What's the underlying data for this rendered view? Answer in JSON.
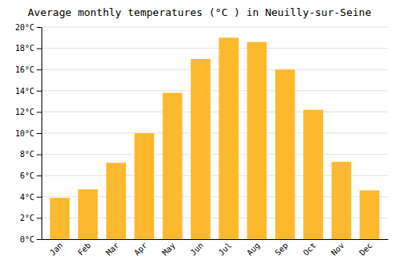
{
  "chart_data": {
    "type": "bar",
    "title": "Average monthly temperatures (°C ) in Neuilly-sur-Seine",
    "categories": [
      "Jan",
      "Feb",
      "Mar",
      "Apr",
      "May",
      "Jun",
      "Jul",
      "Aug",
      "Sep",
      "Oct",
      "Nov",
      "Dec"
    ],
    "values": [
      3.9,
      4.7,
      7.2,
      10.0,
      13.8,
      17.0,
      19.0,
      18.6,
      16.0,
      12.2,
      7.3,
      4.6
    ],
    "color": "#FDB92E",
    "ylim": [
      0,
      20
    ],
    "yticks": [
      {
        "value": 0,
        "label": "0°C"
      },
      {
        "value": 2,
        "label": "2°C"
      },
      {
        "value": 4,
        "label": "4°C"
      },
      {
        "value": 6,
        "label": "6°C"
      },
      {
        "value": 8,
        "label": "8°C"
      },
      {
        "value": 10,
        "label": "10°C"
      },
      {
        "value": 12,
        "label": "12°C"
      },
      {
        "value": 14,
        "label": "14°C"
      },
      {
        "value": 16,
        "label": "16°C"
      },
      {
        "value": 18,
        "label": "18°C"
      },
      {
        "value": 20,
        "label": "20°C"
      }
    ],
    "grid": true
  }
}
